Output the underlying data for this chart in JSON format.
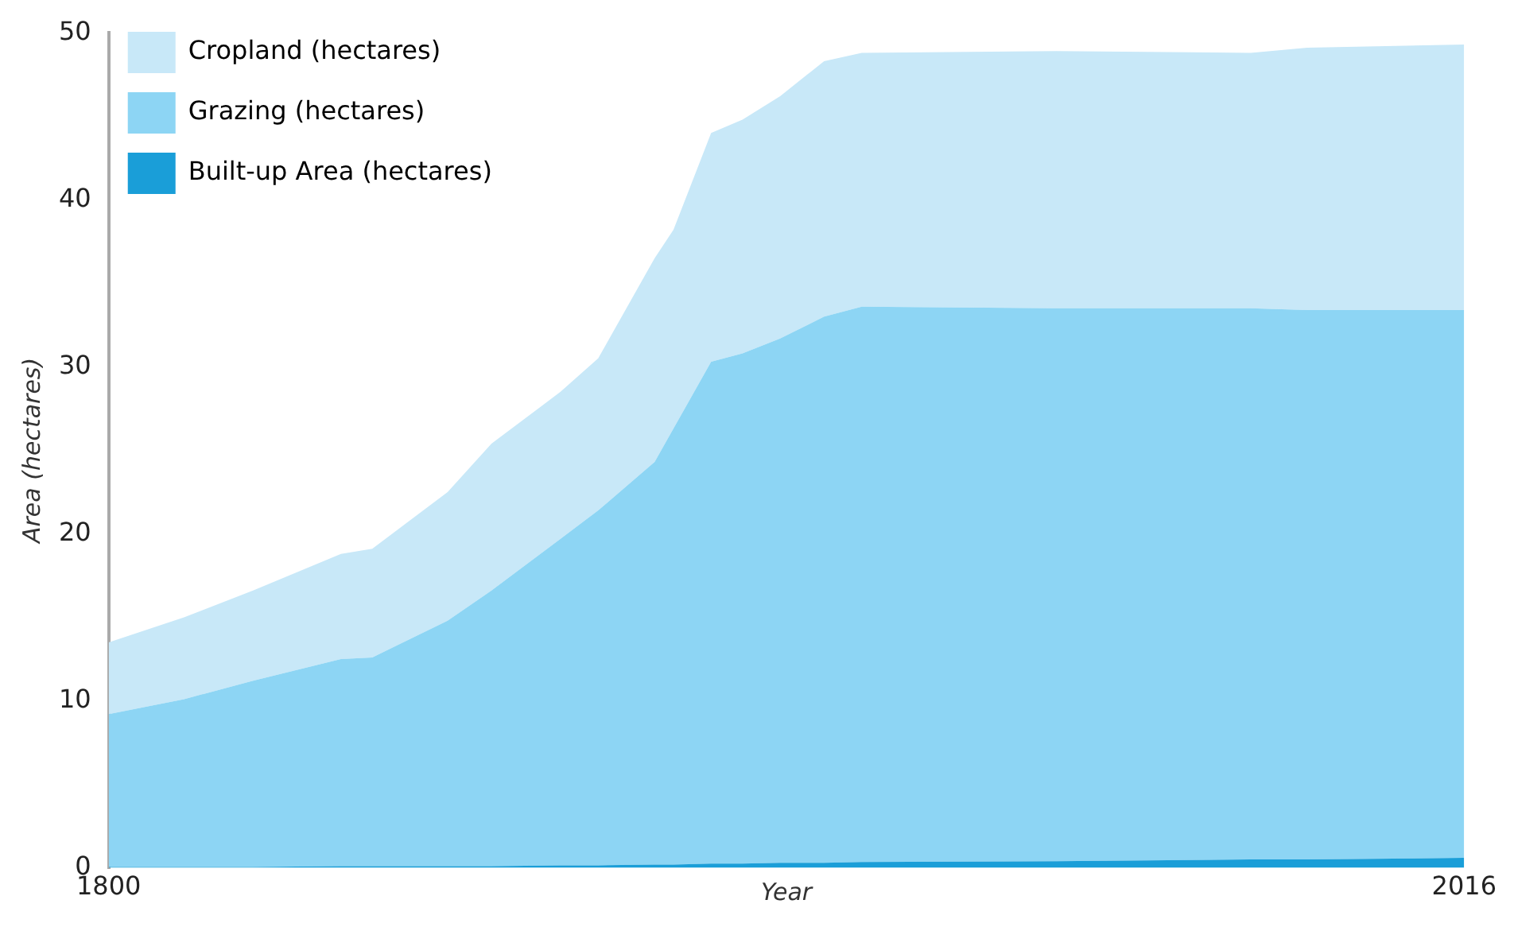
{
  "chart_data": {
    "type": "area",
    "stacked": true,
    "xlabel": "Year",
    "ylabel": "Area (hectares)",
    "x": [
      1800,
      1812,
      1823,
      1837,
      1842,
      1854,
      1861,
      1872,
      1878,
      1887,
      1890,
      1896,
      1901,
      1907,
      1914,
      1920,
      1951,
      1982,
      1991,
      2016
    ],
    "xlim": [
      1800,
      2016
    ],
    "xticks": [
      1800,
      2016
    ],
    "ylim": [
      0,
      50
    ],
    "yticks": [
      0,
      10,
      20,
      30,
      40,
      50
    ],
    "legend": "top left",
    "series": [
      {
        "name": "Built-up Area (hectares)",
        "color": "#1a9ed8",
        "values": [
          0.05,
          0.05,
          0.05,
          0.1,
          0.1,
          0.1,
          0.1,
          0.15,
          0.15,
          0.2,
          0.2,
          0.25,
          0.25,
          0.3,
          0.3,
          0.35,
          0.4,
          0.5,
          0.5,
          0.6
        ]
      },
      {
        "name": "Grazing (hectares)",
        "color": "#8dd5f4",
        "values": [
          9.15,
          10.05,
          11.15,
          12.4,
          12.5,
          14.7,
          16.5,
          19.55,
          21.25,
          24.1,
          26.1,
          30.05,
          30.55,
          31.4,
          32.7,
          33.25,
          33.1,
          33.0,
          32.9,
          32.8
        ]
      },
      {
        "name": "Cropland (hectares)",
        "color": "#c8e8f8",
        "values": [
          4.3,
          4.9,
          5.4,
          6.3,
          6.5,
          7.7,
          8.8,
          8.8,
          9.1,
          12.2,
          11.9,
          13.7,
          14.0,
          14.5,
          15.3,
          15.2,
          15.4,
          15.3,
          15.7,
          15.9
        ]
      }
    ]
  }
}
